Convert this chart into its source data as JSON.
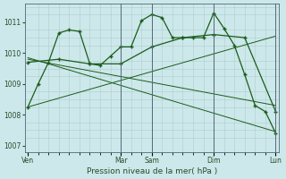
{
  "background_color": "#cce8ea",
  "grid_color": "#b0cccc",
  "line_color": "#1a5c1a",
  "xlabel": "Pression niveau de la mer( hPa )",
  "yticks": [
    1007,
    1008,
    1009,
    1010,
    1011
  ],
  "xtick_labels": [
    "Ven",
    "Mar",
    "Sam",
    "Dim",
    "Lun"
  ],
  "xtick_positions": [
    0,
    9,
    12,
    18,
    24
  ],
  "dark_vlines": [
    9,
    12,
    18,
    24
  ],
  "series1_x": [
    0,
    1,
    2,
    3,
    4,
    5,
    6,
    7,
    8,
    9,
    10,
    11,
    12,
    13,
    14,
    15,
    16,
    17,
    18,
    19,
    20,
    21,
    22,
    23,
    24
  ],
  "series1_y": [
    1008.25,
    1009.0,
    1009.7,
    1010.65,
    1010.75,
    1010.7,
    1009.65,
    1009.6,
    1009.9,
    1010.2,
    1010.2,
    1011.05,
    1011.25,
    1011.15,
    1010.5,
    1010.5,
    1010.5,
    1010.5,
    1011.3,
    1010.8,
    1010.25,
    1009.3,
    1008.3,
    1008.1,
    1007.4
  ],
  "series2_x": [
    0,
    3,
    6,
    9,
    12,
    15,
    18,
    21,
    24
  ],
  "series2_y": [
    1009.7,
    1009.8,
    1009.65,
    1009.65,
    1010.2,
    1010.5,
    1010.6,
    1010.5,
    1008.1
  ],
  "series3_x": [
    0,
    24
  ],
  "series3_y": [
    1009.8,
    1008.3
  ],
  "series4_x": [
    0,
    24
  ],
  "series4_y": [
    1009.85,
    1007.45
  ],
  "series5_x": [
    0,
    24
  ],
  "series5_y": [
    1008.25,
    1010.55
  ],
  "ylim": [
    1006.8,
    1011.6
  ],
  "xlim": [
    -0.3,
    24.3
  ]
}
